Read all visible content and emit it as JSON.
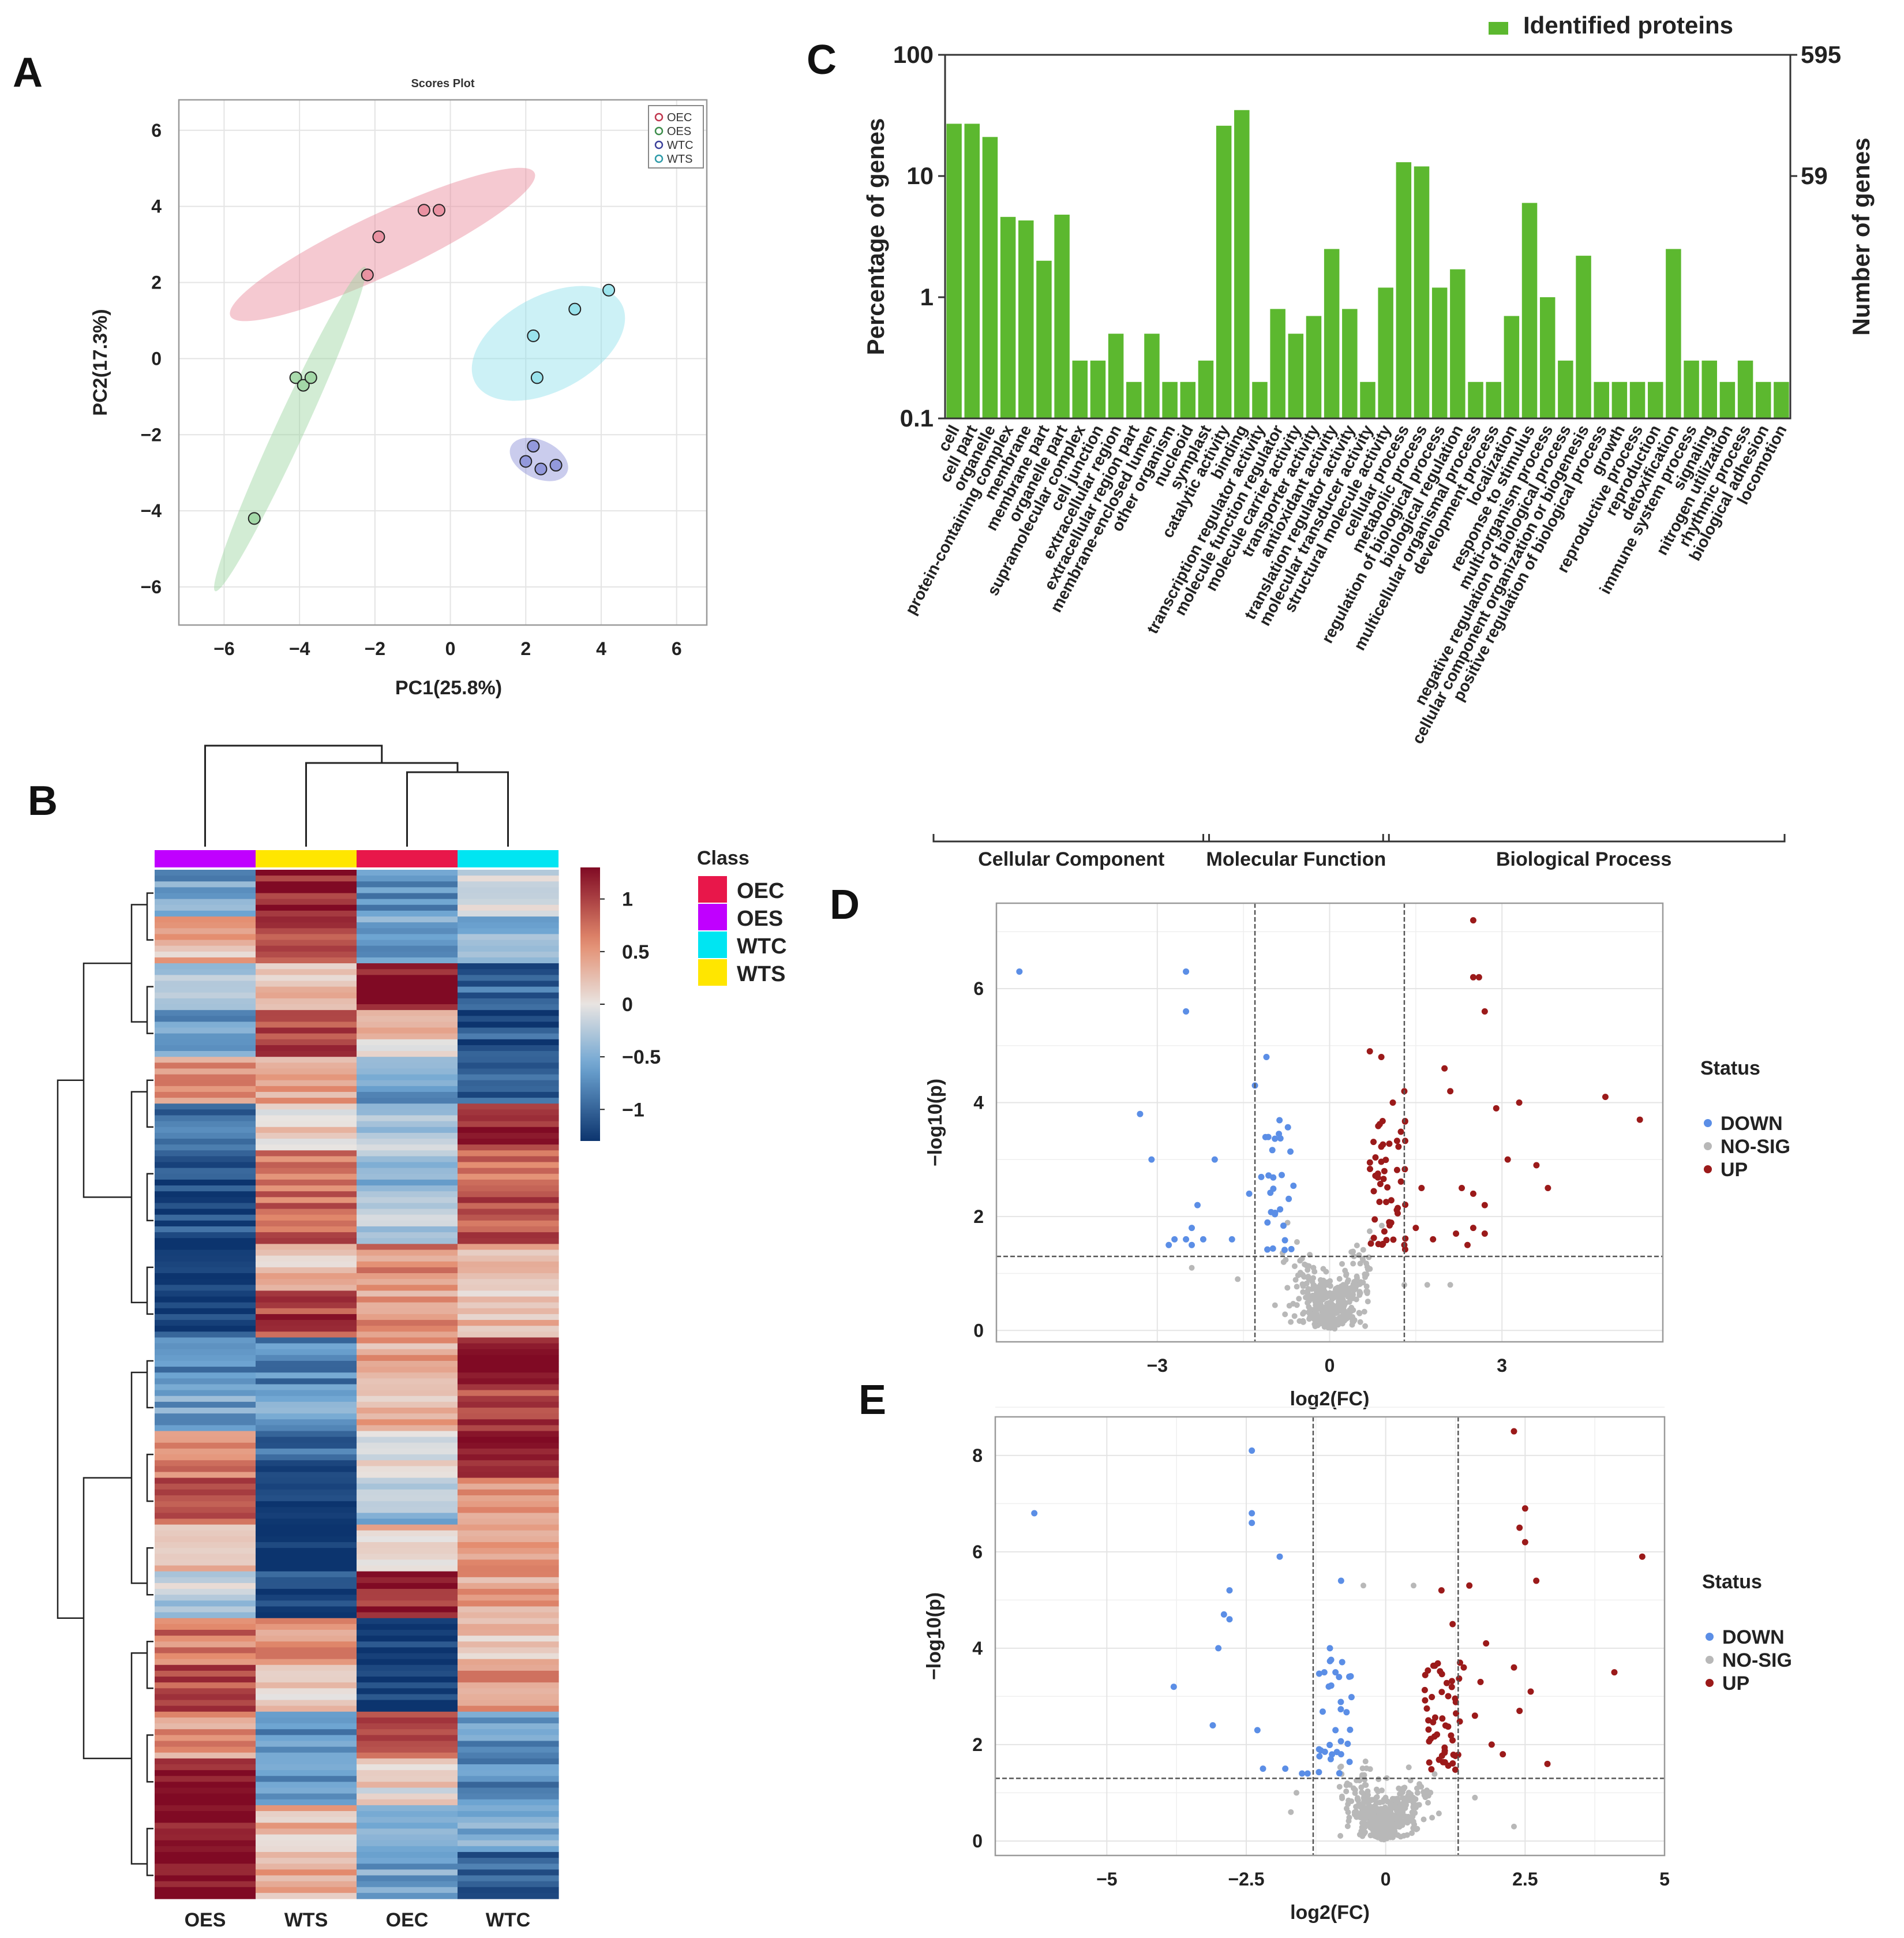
{
  "panel_labels": {
    "a": "A",
    "b": "B",
    "c": "C",
    "d": "D",
    "e": "E"
  },
  "chart_data": [
    {
      "id": "A",
      "type": "scatter",
      "title": "Scores Plot",
      "xlabel": "PC1(25.8%)",
      "ylabel": "PC2(17.3%)",
      "xlim": [
        -7.2,
        6.8
      ],
      "ylim": [
        -7.0,
        6.8
      ],
      "xticks": [
        -6,
        -4,
        -2,
        0,
        2,
        4,
        6
      ],
      "yticks": [
        -6,
        -4,
        -2,
        0,
        2,
        4,
        6
      ],
      "xtick_labels": [
        "−6",
        "−4",
        "−2",
        "0",
        "2",
        "4",
        "6"
      ],
      "ytick_labels": [
        "−6",
        "−4",
        "−2",
        "0",
        "2",
        "4",
        "6"
      ],
      "legend": [
        "OEC",
        "OES",
        "WTC",
        "WTS"
      ],
      "series": [
        {
          "name": "OEC",
          "color": "#c0364d",
          "fill": "#e8889a",
          "points": [
            [
              -2.2,
              2.2
            ],
            [
              -1.9,
              3.2
            ],
            [
              -0.7,
              3.9
            ],
            [
              -0.3,
              3.9
            ]
          ],
          "ellipse": {
            "cx": -1.8,
            "cy": 3.0,
            "rx": 4.45,
            "ry": 0.8,
            "angle_deg": 25
          }
        },
        {
          "name": "OES",
          "color": "#3c8c4a",
          "fill": "#9bd59f",
          "points": [
            [
              -4.1,
              -0.5
            ],
            [
              -3.9,
              -0.7
            ],
            [
              -3.7,
              -0.5
            ],
            [
              -5.2,
              -4.2
            ]
          ],
          "ellipse": {
            "cx": -4.25,
            "cy": -1.85,
            "rx": 4.7,
            "ry": 0.38,
            "angle_deg": 65
          }
        },
        {
          "name": "WTC",
          "color": "#3a3f9a",
          "fill": "#8a8fd8",
          "points": [
            [
              2.0,
              -2.7
            ],
            [
              2.2,
              -2.3
            ],
            [
              2.4,
              -2.9
            ],
            [
              2.8,
              -2.8
            ]
          ],
          "ellipse": {
            "cx": 2.35,
            "cy": -2.65,
            "rx": 0.82,
            "ry": 0.5,
            "angle_deg": -25
          }
        },
        {
          "name": "WTS",
          "color": "#2b9aa8",
          "fill": "#8fe0ea",
          "points": [
            [
              2.2,
              0.6
            ],
            [
              2.3,
              -0.5
            ],
            [
              3.3,
              1.3
            ],
            [
              4.2,
              1.8
            ]
          ],
          "ellipse": {
            "cx": 2.6,
            "cy": 0.4,
            "rx": 2.2,
            "ry": 1.25,
            "angle_deg": 28
          }
        }
      ]
    },
    {
      "id": "B",
      "type": "heatmap",
      "columns": [
        "OES",
        "WTS",
        "OEC",
        "WTC"
      ],
      "column_classes": [
        "OES",
        "WTS",
        "OEC",
        "WTC"
      ],
      "legend_title": "Class",
      "classes": [
        {
          "name": "OEC",
          "color": "#e8174a"
        },
        {
          "name": "OES",
          "color": "#c000ff"
        },
        {
          "name": "WTC",
          "color": "#00e5f2"
        },
        {
          "name": "WTS",
          "color": "#ffe600"
        }
      ],
      "colorbar": {
        "range": [
          -1.3,
          1.3
        ],
        "ticks": [
          1,
          0.5,
          0,
          -0.5,
          -1
        ],
        "tick_labels": [
          "1",
          "0.5",
          "0",
          "−0.5",
          "−1"
        ]
      },
      "row_blocks": [
        [
          -0.6,
          1.2,
          -0.8,
          0.0
        ],
        [
          0.3,
          0.9,
          -0.6,
          -0.4
        ],
        [
          -0.2,
          0.3,
          1.2,
          -1.0
        ],
        [
          -0.6,
          1.0,
          0.2,
          -1.1
        ],
        [
          0.5,
          0.5,
          -0.6,
          -1.1
        ],
        [
          -1.0,
          0.1,
          -0.2,
          1.2
        ],
        [
          -1.2,
          0.7,
          -0.4,
          0.7
        ],
        [
          -1.1,
          0.8,
          -0.2,
          0.9
        ],
        [
          -1.3,
          0.3,
          0.6,
          0.4
        ],
        [
          -1.2,
          1.0,
          0.5,
          0.2
        ],
        [
          -0.8,
          -0.8,
          0.4,
          1.3
        ],
        [
          -0.6,
          -0.6,
          0.3,
          1.0
        ],
        [
          0.6,
          -1.0,
          0.1,
          1.2
        ],
        [
          0.8,
          -1.2,
          -0.4,
          0.5
        ],
        [
          0.4,
          -1.3,
          0.2,
          0.4
        ],
        [
          -0.2,
          -1.2,
          1.1,
          0.4
        ],
        [
          0.7,
          0.5,
          -1.3,
          0.2
        ],
        [
          0.9,
          0.1,
          -1.3,
          0.5
        ],
        [
          0.5,
          -0.7,
          0.8,
          -0.7
        ],
        [
          1.2,
          -0.6,
          0.1,
          -0.8
        ],
        [
          1.3,
          0.3,
          -0.4,
          -0.5
        ],
        [
          1.3,
          0.4,
          -0.6,
          -1.0
        ]
      ]
    },
    {
      "id": "C",
      "type": "bar",
      "legend": "Identified proteins",
      "ylabel": "Percentage of genes",
      "y2label": "Number of genes",
      "yscale": "log",
      "ylim": [
        0.1,
        100
      ],
      "yticks": [
        100,
        10,
        1,
        0.1
      ],
      "ytick_labels": [
        "100",
        "10",
        "1",
        "0.1"
      ],
      "y2tick_labels": [
        "595",
        "59"
      ],
      "categories": [
        "cell",
        "cell part",
        "organelle",
        "protein-containing complex",
        "membrane",
        "membrane part",
        "organelle part",
        "supramolecular complex",
        "cell junction",
        "extracellular region",
        "extracellular region part",
        "membrane-enclosed lumen",
        "other organism",
        "nucleoid",
        "symplast",
        "catalytic activity",
        "binding",
        "transcription regulator activity",
        "molecule function regulator",
        "molecule carrier activity",
        "transporter activity",
        "antioxidant activity",
        "translation regulator activity",
        "molecular transducer activity",
        "structural molecule activity",
        "cellular process",
        "metabolic process",
        "regulation of biological process",
        "biological regulation",
        "multicellular organismal process",
        "development process",
        "localization",
        "response to stimulus",
        "multi-organism process",
        "negative regulation of biological process",
        "cellular component organization or biogenesis",
        "positive regulation of biological process",
        "growth",
        "reproductive process",
        "reproduction",
        "detoxification",
        "immune system process",
        "signaling",
        "nitrogen utilization",
        "rhythmic process",
        "biological adhesion",
        "locomotion"
      ],
      "values": [
        27,
        27,
        21,
        4.6,
        4.3,
        2.0,
        4.8,
        0.3,
        0.3,
        0.5,
        0.2,
        0.5,
        0.2,
        0.2,
        0.3,
        26,
        35,
        0.2,
        0.8,
        0.5,
        0.7,
        2.5,
        0.8,
        0.2,
        1.2,
        13,
        12,
        1.2,
        1.7,
        0.2,
        0.2,
        0.7,
        6.0,
        1.0,
        0.3,
        2.2,
        0.2,
        0.2,
        0.2,
        0.2,
        2.5,
        0.3,
        0.3,
        0.2,
        0.3,
        0.2,
        0.2
      ],
      "groups": [
        {
          "name": "Cellular Component",
          "from": 0,
          "to": 14
        },
        {
          "name": "Molecular Function",
          "from": 15,
          "to": 24
        },
        {
          "name": "Biological Process",
          "from": 25,
          "to": 46
        }
      ],
      "color": "#5cb82f"
    },
    {
      "id": "D",
      "type": "scatter",
      "xlabel": "log2(FC)",
      "ylabel": "−log10(p)",
      "xlim": [
        -5.8,
        5.8
      ],
      "ylim": [
        -0.2,
        7.5
      ],
      "xticks": [
        -3,
        0,
        3
      ],
      "yticks": [
        0,
        2,
        4,
        6
      ],
      "xtick_labels": [
        "−3",
        "0",
        "3"
      ],
      "ytick_labels": [
        "0",
        "2",
        "4",
        "6"
      ],
      "thresholds": {
        "x": [
          -1.3,
          1.3
        ],
        "y": 1.3
      },
      "legend_title": "Status",
      "legend": [
        {
          "name": "DOWN",
          "color": "#5b8ee6"
        },
        {
          "name": "NO-SIG",
          "color": "#b8b8b8"
        },
        {
          "name": "UP",
          "color": "#9b1a1a"
        }
      ],
      "up_points": [
        [
          2.5,
          7.2
        ],
        [
          2.5,
          6.2
        ],
        [
          2.6,
          6.2
        ],
        [
          2.7,
          5.6
        ],
        [
          2.0,
          4.6
        ],
        [
          2.1,
          4.2
        ],
        [
          0.7,
          4.9
        ],
        [
          0.9,
          4.8
        ],
        [
          1.3,
          4.2
        ],
        [
          1.1,
          4.0
        ],
        [
          2.9,
          3.9
        ],
        [
          3.1,
          3.0
        ],
        [
          3.3,
          4.0
        ],
        [
          3.6,
          2.9
        ],
        [
          3.8,
          2.5
        ],
        [
          4.8,
          4.1
        ],
        [
          5.4,
          3.7
        ],
        [
          2.3,
          2.5
        ],
        [
          2.5,
          2.4
        ],
        [
          2.7,
          2.2
        ],
        [
          2.5,
          1.8
        ],
        [
          2.4,
          1.5
        ],
        [
          2.7,
          1.7
        ],
        [
          2.2,
          1.7
        ],
        [
          1.6,
          2.5
        ],
        [
          1.5,
          1.8
        ],
        [
          1.3,
          1.5
        ],
        [
          1.8,
          1.6
        ]
      ],
      "down_points": [
        [
          -5.4,
          6.3
        ],
        [
          -2.5,
          6.3
        ],
        [
          -2.5,
          5.6
        ],
        [
          -1.1,
          4.8
        ],
        [
          -1.3,
          4.3
        ],
        [
          -3.3,
          3.8
        ],
        [
          -3.1,
          3.0
        ],
        [
          -2.0,
          3.0
        ],
        [
          -2.3,
          2.2
        ],
        [
          -2.4,
          1.8
        ],
        [
          -2.7,
          1.6
        ],
        [
          -2.8,
          1.5
        ],
        [
          -2.2,
          1.6
        ],
        [
          -2.5,
          1.6
        ],
        [
          -2.4,
          1.5
        ],
        [
          -1.7,
          1.6
        ],
        [
          -1.4,
          2.4
        ]
      ],
      "ns_points": [
        [
          -1.6,
          0.9
        ],
        [
          -2.4,
          1.1
        ],
        [
          -0.8,
          1.2
        ],
        [
          1.7,
          0.8
        ],
        [
          2.1,
          0.8
        ],
        [
          1.3,
          0.8
        ]
      ]
    },
    {
      "id": "E",
      "type": "scatter",
      "xlabel": "log2(FC)",
      "ylabel": "−log10(p)",
      "xlim": [
        -7.0,
        5.0
      ],
      "ylim": [
        -0.3,
        8.8
      ],
      "xticks": [
        -5,
        -2.5,
        0,
        2.5,
        5
      ],
      "yticks": [
        0,
        2,
        4,
        6,
        8
      ],
      "xtick_labels": [
        "−5",
        "−2.5",
        "0",
        "2.5",
        "5"
      ],
      "ytick_labels": [
        "0",
        "2",
        "4",
        "6",
        "8"
      ],
      "thresholds": {
        "x": [
          -1.3,
          1.3
        ],
        "y": 1.3
      },
      "legend_title": "Status",
      "legend": [
        {
          "name": "DOWN",
          "color": "#5b8ee6"
        },
        {
          "name": "NO-SIG",
          "color": "#b8b8b8"
        },
        {
          "name": "UP",
          "color": "#9b1a1a"
        }
      ],
      "up_points": [
        [
          2.3,
          8.5
        ],
        [
          2.5,
          6.9
        ],
        [
          2.4,
          6.5
        ],
        [
          2.5,
          6.2
        ],
        [
          2.7,
          5.4
        ],
        [
          4.6,
          5.9
        ],
        [
          4.1,
          3.5
        ],
        [
          2.3,
          3.6
        ],
        [
          2.4,
          2.7
        ],
        [
          2.6,
          3.1
        ],
        [
          2.9,
          1.6
        ],
        [
          1.5,
          5.3
        ],
        [
          1.8,
          4.1
        ],
        [
          1.7,
          3.3
        ],
        [
          1.6,
          2.6
        ],
        [
          1.9,
          2.0
        ],
        [
          2.1,
          1.8
        ],
        [
          1.4,
          3.6
        ],
        [
          1.2,
          4.5
        ],
        [
          1.0,
          5.2
        ]
      ],
      "down_points": [
        [
          -6.3,
          6.8
        ],
        [
          -2.4,
          8.1
        ],
        [
          -2.4,
          6.8
        ],
        [
          -2.4,
          6.6
        ],
        [
          -2.8,
          5.2
        ],
        [
          -2.9,
          4.7
        ],
        [
          -2.8,
          4.6
        ],
        [
          -1.9,
          5.9
        ],
        [
          -3.0,
          4.0
        ],
        [
          -3.8,
          3.2
        ],
        [
          -3.1,
          2.4
        ],
        [
          -2.3,
          2.3
        ],
        [
          -2.2,
          1.5
        ],
        [
          -1.8,
          1.5
        ],
        [
          -1.5,
          1.4
        ],
        [
          -1.4,
          1.4
        ],
        [
          -0.8,
          5.4
        ],
        [
          -1.0,
          4.0
        ],
        [
          -1.1,
          3.5
        ],
        [
          -0.9,
          3.5
        ],
        [
          -0.9,
          2.3
        ],
        [
          -0.8,
          1.8
        ]
      ],
      "ns_points": [
        [
          2.3,
          0.3
        ],
        [
          -1.6,
          1.0
        ],
        [
          -1.7,
          0.6
        ],
        [
          1.6,
          0.9
        ],
        [
          -0.4,
          5.3
        ],
        [
          0.5,
          5.3
        ]
      ]
    }
  ]
}
